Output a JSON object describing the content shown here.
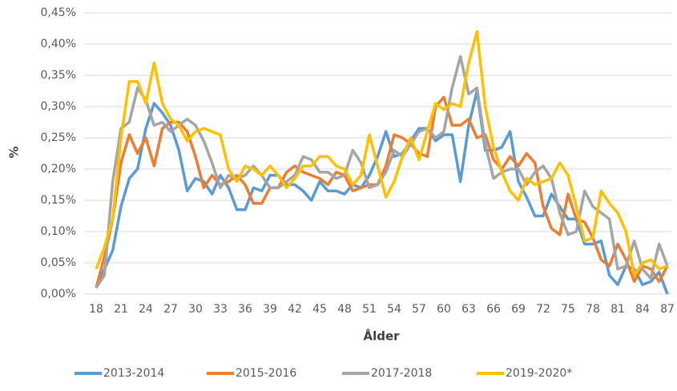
{
  "chart_data": {
    "type": "line",
    "y_label": "%",
    "x_label": "Ålder",
    "x": [
      18,
      19,
      20,
      21,
      22,
      23,
      24,
      25,
      26,
      27,
      28,
      29,
      30,
      31,
      32,
      33,
      34,
      35,
      36,
      37,
      38,
      39,
      40,
      41,
      42,
      43,
      44,
      45,
      46,
      47,
      48,
      49,
      50,
      51,
      52,
      53,
      54,
      55,
      56,
      57,
      58,
      59,
      60,
      61,
      62,
      63,
      64,
      65,
      66,
      67,
      68,
      69,
      70,
      71,
      72,
      73,
      74,
      75,
      76,
      77,
      78,
      79,
      80,
      81,
      82,
      83,
      84,
      85,
      86,
      87
    ],
    "xlim": [
      18,
      87
    ],
    "xticks": [
      18,
      21,
      24,
      27,
      30,
      33,
      36,
      39,
      42,
      45,
      48,
      51,
      54,
      57,
      60,
      63,
      66,
      69,
      72,
      75,
      78,
      81,
      84,
      87
    ],
    "ylim": [
      0,
      0.45
    ],
    "yticks": [
      {
        "value": 0,
        "label": "0,00%"
      },
      {
        "value": 0.05,
        "label": "0,05%"
      },
      {
        "value": 0.1,
        "label": "0,10%"
      },
      {
        "value": 0.15,
        "label": "0,15%"
      },
      {
        "value": 0.2,
        "label": "0,20%"
      },
      {
        "value": 0.25,
        "label": "0,25%"
      },
      {
        "value": 0.3,
        "label": "0,30%"
      },
      {
        "value": 0.35,
        "label": "0,35%"
      },
      {
        "value": 0.4,
        "label": "0,40%"
      },
      {
        "value": 0.45,
        "label": "0,45%"
      }
    ],
    "grid": true,
    "legend": "bottom",
    "series": [
      {
        "name": "2013-2014",
        "color": "#5b9bd5",
        "values": [
          0.01,
          0.04,
          0.07,
          0.14,
          0.185,
          0.2,
          0.265,
          0.305,
          0.29,
          0.27,
          0.23,
          0.165,
          0.185,
          0.18,
          0.16,
          0.19,
          0.17,
          0.135,
          0.135,
          0.17,
          0.165,
          0.19,
          0.19,
          0.175,
          0.175,
          0.165,
          0.15,
          0.18,
          0.165,
          0.165,
          0.16,
          0.175,
          0.17,
          0.19,
          0.22,
          0.26,
          0.22,
          0.225,
          0.245,
          0.265,
          0.265,
          0.245,
          0.255,
          0.255,
          0.18,
          0.27,
          0.325,
          0.23,
          0.23,
          0.235,
          0.26,
          0.18,
          0.155,
          0.125,
          0.125,
          0.16,
          0.14,
          0.12,
          0.12,
          0.08,
          0.08,
          0.085,
          0.03,
          0.015,
          0.045,
          0.04,
          0.015,
          0.02,
          0.035,
          0
        ]
      },
      {
        "name": "2015-2016",
        "color": "#ed7d31",
        "values": [
          0.01,
          0.06,
          0.12,
          0.21,
          0.255,
          0.225,
          0.25,
          0.205,
          0.265,
          0.275,
          0.275,
          0.26,
          0.22,
          0.17,
          0.19,
          0.175,
          0.18,
          0.19,
          0.175,
          0.145,
          0.145,
          0.17,
          0.17,
          0.195,
          0.205,
          0.195,
          0.19,
          0.185,
          0.175,
          0.195,
          0.19,
          0.165,
          0.17,
          0.175,
          0.175,
          0.205,
          0.255,
          0.25,
          0.24,
          0.225,
          0.22,
          0.3,
          0.315,
          0.27,
          0.27,
          0.28,
          0.25,
          0.255,
          0.215,
          0.2,
          0.22,
          0.205,
          0.225,
          0.21,
          0.14,
          0.105,
          0.095,
          0.16,
          0.12,
          0.115,
          0.09,
          0.055,
          0.045,
          0.08,
          0.055,
          0.02,
          0.045,
          0.04,
          0.02,
          0.045
        ]
      },
      {
        "name": "2017-2018",
        "color": "#a5a5a5",
        "values": [
          0.01,
          0.03,
          0.18,
          0.265,
          0.275,
          0.33,
          0.31,
          0.27,
          0.275,
          0.26,
          0.27,
          0.28,
          0.27,
          0.245,
          0.21,
          0.17,
          0.19,
          0.185,
          0.19,
          0.205,
          0.19,
          0.17,
          0.17,
          0.18,
          0.19,
          0.22,
          0.215,
          0.195,
          0.195,
          0.185,
          0.19,
          0.23,
          0.21,
          0.17,
          0.175,
          0.195,
          0.23,
          0.22,
          0.24,
          0.26,
          0.265,
          0.25,
          0.26,
          0.33,
          0.38,
          0.32,
          0.33,
          0.24,
          0.185,
          0.195,
          0.2,
          0.2,
          0.175,
          0.195,
          0.205,
          0.185,
          0.13,
          0.095,
          0.1,
          0.165,
          0.14,
          0.13,
          0.12,
          0.04,
          0.045,
          0.085,
          0.04,
          0.025,
          0.08,
          0.045
        ]
      },
      {
        "name": "2019-2020*",
        "color": "#ffc000",
        "values": [
          0.04,
          0.075,
          0.12,
          0.25,
          0.34,
          0.34,
          0.305,
          0.37,
          0.305,
          0.28,
          0.27,
          0.245,
          0.26,
          0.265,
          0.26,
          0.255,
          0.2,
          0.18,
          0.205,
          0.2,
          0.19,
          0.205,
          0.19,
          0.17,
          0.185,
          0.205,
          0.205,
          0.22,
          0.22,
          0.205,
          0.2,
          0.175,
          0.19,
          0.255,
          0.205,
          0.155,
          0.18,
          0.22,
          0.25,
          0.215,
          0.26,
          0.305,
          0.295,
          0.305,
          0.3,
          0.37,
          0.42,
          0.3,
          0.235,
          0.195,
          0.165,
          0.15,
          0.185,
          0.175,
          0.18,
          0.185,
          0.21,
          0.19,
          0.14,
          0.085,
          0.09,
          0.165,
          0.145,
          0.13,
          0.1,
          0.03,
          0.05,
          0.055,
          0.04,
          0.045
        ]
      }
    ]
  }
}
